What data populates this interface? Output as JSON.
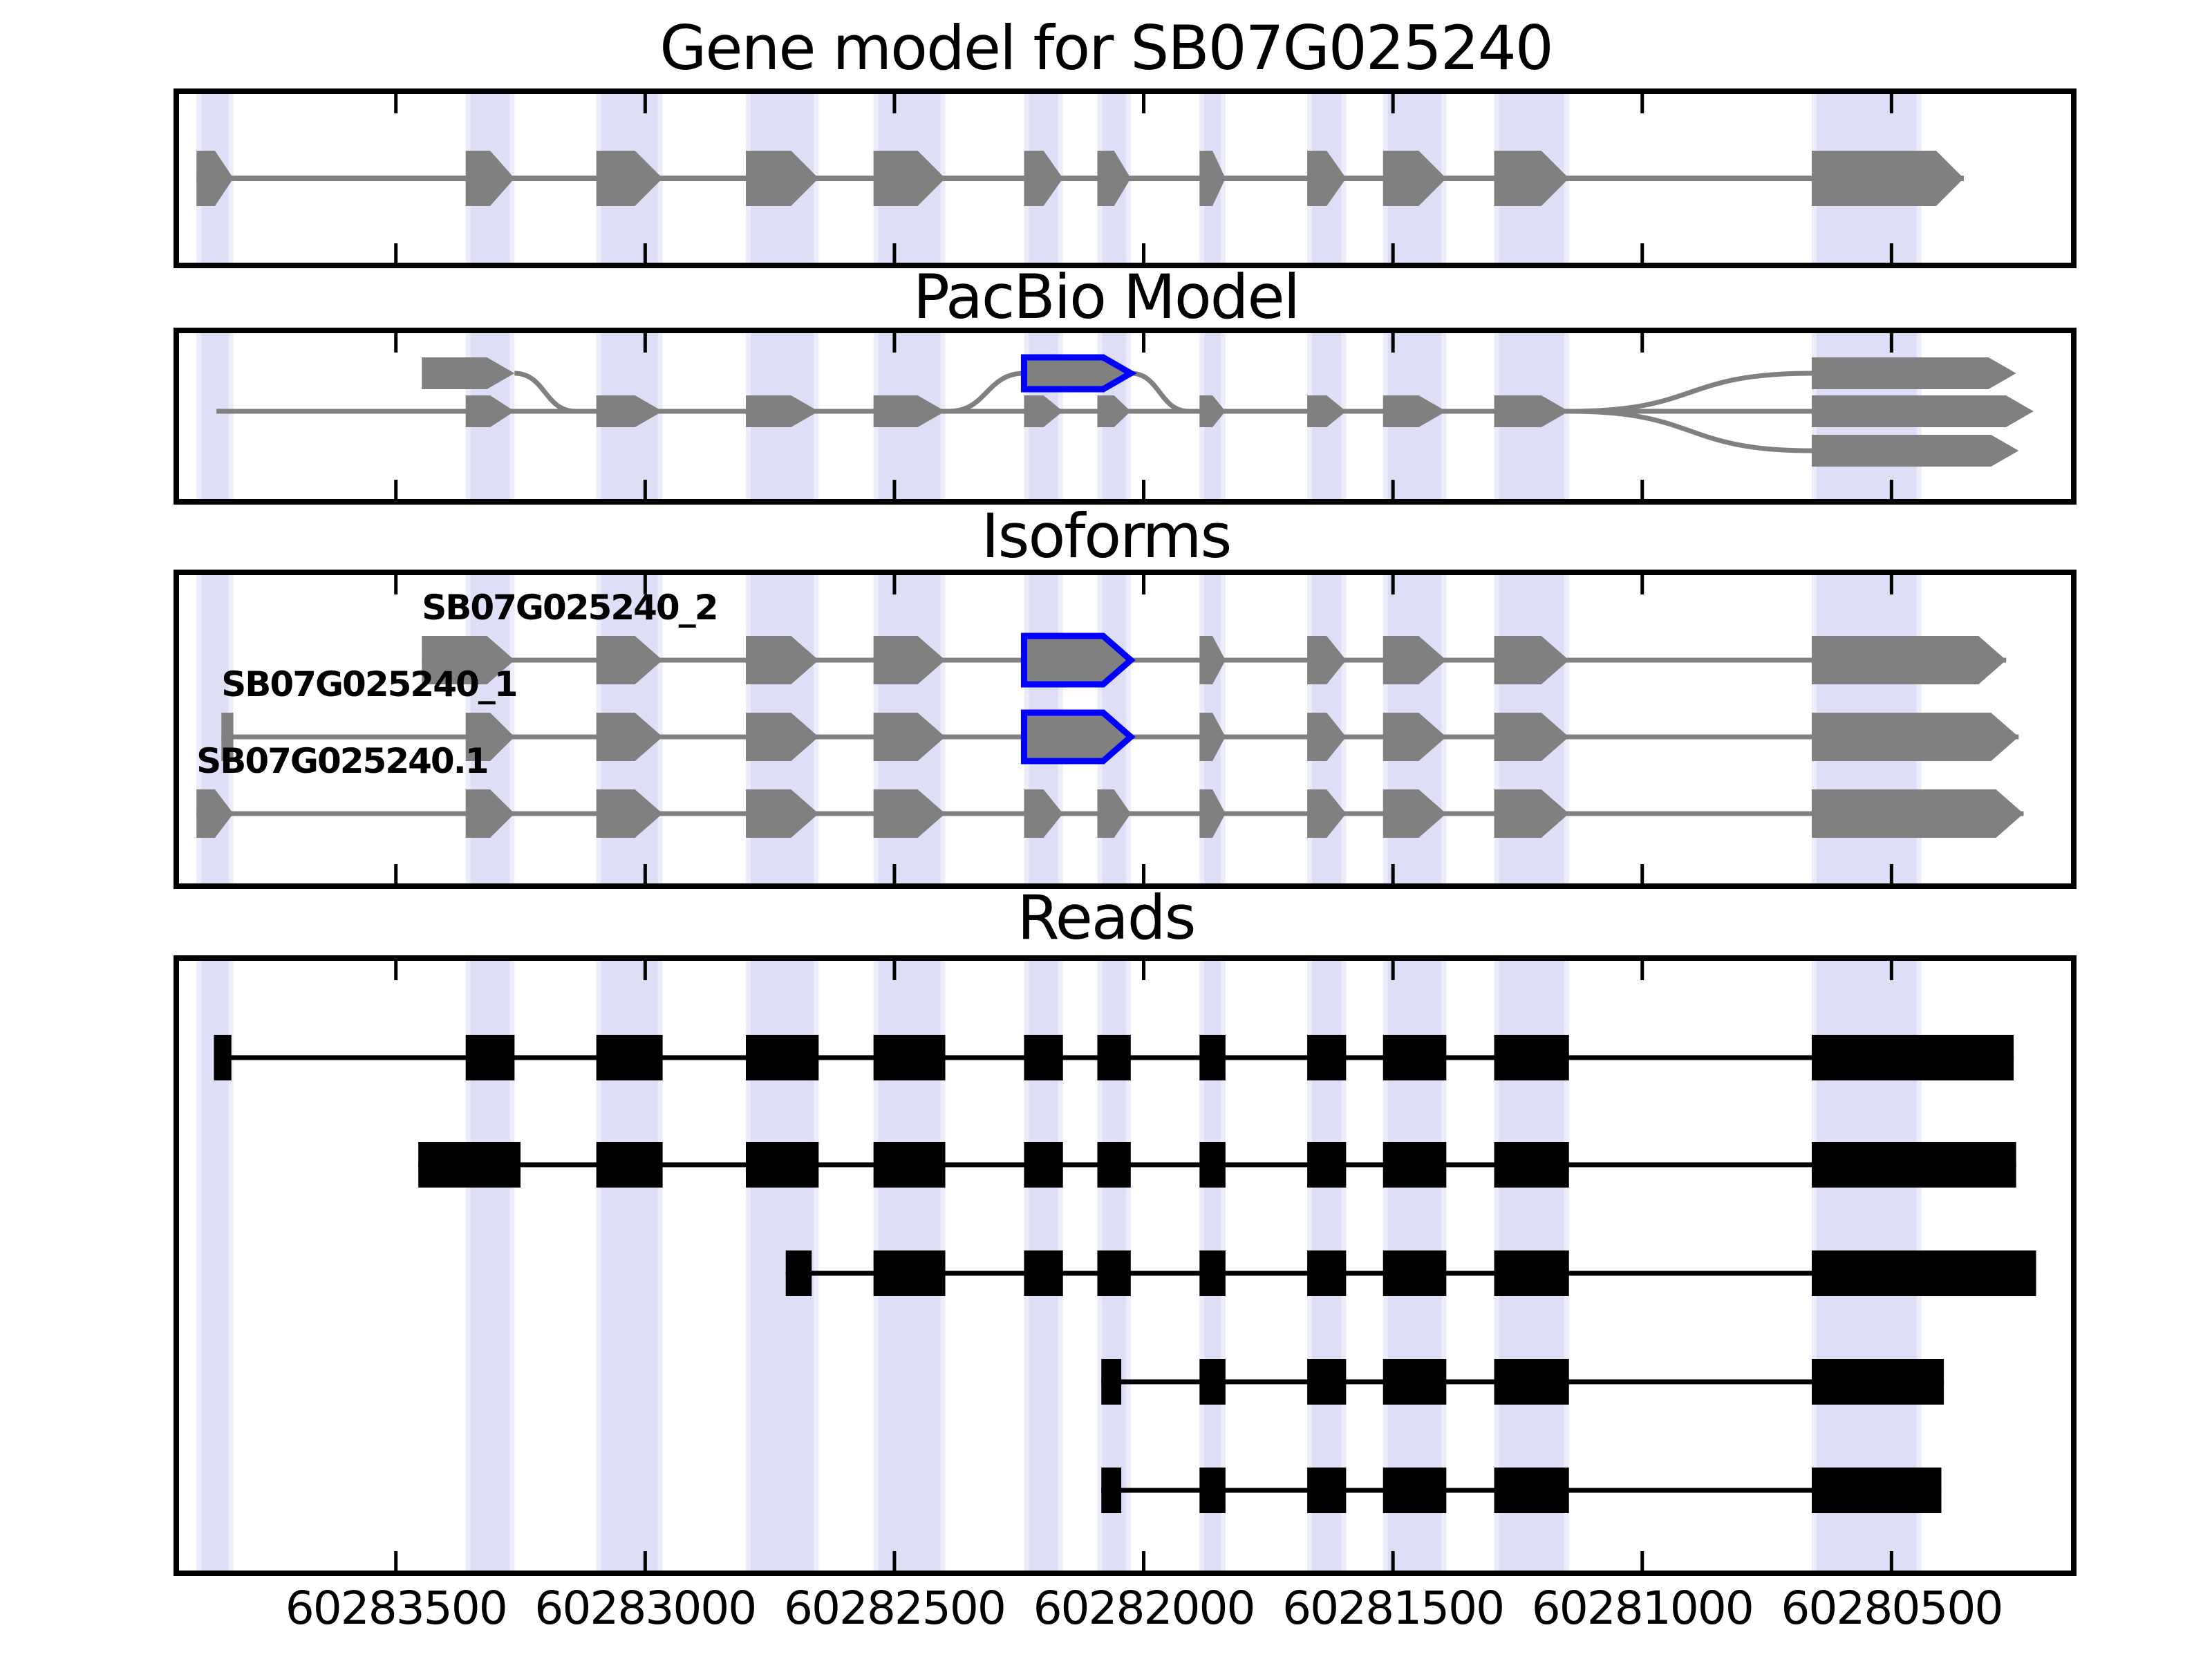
{
  "titles": {
    "gene_model": "Gene model for SB07G025240",
    "pacbio": "PacBio Model",
    "isoforms": "Isoforms",
    "reads": "Reads"
  },
  "colors": {
    "exon_gray": "#808080",
    "read_black": "#000000",
    "highlight_core": "#dedef6",
    "highlight_edge": "#ececfa",
    "blue_outline": "#0000ff",
    "panel_border": "#000000",
    "background": "#ffffff"
  },
  "chart_data": {
    "type": "genome-tracks",
    "gene_id": "SB07G025240",
    "x_axis": {
      "start": 60283935,
      "end": 60280140,
      "reversed": true,
      "tick_values": [
        60283500,
        60283000,
        60282500,
        60282000,
        60281500,
        60281000,
        60280500
      ],
      "tick_labels": [
        "60283500",
        "60283000",
        "60282500",
        "60282000",
        "60281500",
        "60281000",
        "60280500"
      ]
    },
    "highlight_regions": [
      [
        60283900,
        60283826
      ],
      [
        60283360,
        60283262
      ],
      [
        60283098,
        60282965
      ],
      [
        60282798,
        60282652
      ],
      [
        60282542,
        60282398
      ],
      [
        60282240,
        60282162
      ],
      [
        60282093,
        60282026
      ],
      [
        60281888,
        60281836
      ],
      [
        60281672,
        60281594
      ],
      [
        60281520,
        60281393
      ],
      [
        60281297,
        60281147
      ],
      [
        60280660,
        60280440
      ]
    ],
    "gene_model": {
      "line": [
        60283900,
        60280355
      ],
      "features": [
        {
          "type": "exon",
          "span": [
            60283900,
            60283826
          ]
        },
        {
          "type": "exon",
          "span": [
            60283360,
            60283262
          ]
        },
        {
          "type": "exon",
          "span": [
            60283098,
            60282965
          ]
        },
        {
          "type": "exon",
          "span": [
            60282798,
            60282652
          ]
        },
        {
          "type": "exon",
          "span": [
            60282542,
            60282398
          ]
        },
        {
          "type": "exon",
          "span": [
            60282240,
            60282162
          ]
        },
        {
          "type": "exon",
          "span": [
            60282093,
            60282026
          ]
        },
        {
          "type": "exon",
          "span": [
            60281888,
            60281836
          ]
        },
        {
          "type": "exon",
          "span": [
            60281672,
            60281594
          ]
        },
        {
          "type": "exon",
          "span": [
            60281520,
            60281393
          ]
        },
        {
          "type": "exon",
          "span": [
            60281297,
            60281147
          ]
        },
        {
          "type": "exon",
          "span": [
            60280660,
            60280355
          ]
        }
      ]
    },
    "pacbio": {
      "start_exon": [
        60283860,
        60283826
      ],
      "main_line": [
        60283860,
        60280660
      ],
      "main_exons": [
        [
          60283360,
          60283262
        ],
        [
          60283098,
          60282965
        ],
        [
          60282798,
          60282652
        ],
        [
          60282542,
          60282398
        ],
        [
          60282240,
          60282162
        ],
        [
          60282093,
          60282026
        ],
        [
          60281888,
          60281836
        ],
        [
          60281672,
          60281594
        ],
        [
          60281520,
          60281393
        ],
        [
          60281297,
          60281147
        ]
      ],
      "alt_start": {
        "exon": [
          60283448,
          60283262
        ],
        "join_at": 60283140
      },
      "alt_blue_exon": {
        "exon": [
          60282240,
          60282026
        ],
        "curve_from": 60282390,
        "curve_to": 60281910
      },
      "branch_point": 60281147,
      "end_exons": {
        "top": [
          60280660,
          60280250
        ],
        "middle": [
          60280660,
          60280215
        ],
        "bottom": [
          60280660,
          60280245
        ]
      }
    },
    "isoforms": [
      {
        "label": "SB07G025240_2",
        "label_at": 60283448,
        "line": [
          60283448,
          60280270
        ],
        "features": [
          {
            "type": "exon",
            "span": [
              60283448,
              60283262
            ]
          },
          {
            "type": "exon",
            "span": [
              60283098,
              60282965
            ]
          },
          {
            "type": "exon",
            "span": [
              60282798,
              60282652
            ]
          },
          {
            "type": "exon",
            "span": [
              60282542,
              60282398
            ]
          },
          {
            "type": "blue",
            "span": [
              60282240,
              60282026
            ]
          },
          {
            "type": "exon",
            "span": [
              60281888,
              60281836
            ]
          },
          {
            "type": "exon",
            "span": [
              60281672,
              60281594
            ]
          },
          {
            "type": "exon",
            "span": [
              60281520,
              60281393
            ]
          },
          {
            "type": "exon",
            "span": [
              60281297,
              60281147
            ]
          },
          {
            "type": "exon",
            "span": [
              60280660,
              60280270
            ]
          }
        ]
      },
      {
        "label": "SB07G025240_1",
        "label_at": 60283850,
        "line": [
          60283850,
          60280245
        ],
        "features": [
          {
            "type": "bar",
            "span": [
              60283850,
              60283826
            ]
          },
          {
            "type": "exon",
            "span": [
              60283360,
              60283262
            ]
          },
          {
            "type": "exon",
            "span": [
              60283098,
              60282965
            ]
          },
          {
            "type": "exon",
            "span": [
              60282798,
              60282652
            ]
          },
          {
            "type": "exon",
            "span": [
              60282542,
              60282398
            ]
          },
          {
            "type": "blue",
            "span": [
              60282240,
              60282026
            ]
          },
          {
            "type": "exon",
            "span": [
              60281888,
              60281836
            ]
          },
          {
            "type": "exon",
            "span": [
              60281672,
              60281594
            ]
          },
          {
            "type": "exon",
            "span": [
              60281520,
              60281393
            ]
          },
          {
            "type": "exon",
            "span": [
              60281297,
              60281147
            ]
          },
          {
            "type": "exon",
            "span": [
              60280660,
              60280245
            ]
          }
        ]
      },
      {
        "label": "SB07G025240.1",
        "label_at": 60283900,
        "line": [
          60283900,
          60280235
        ],
        "features": [
          {
            "type": "exon",
            "span": [
              60283900,
              60283826
            ]
          },
          {
            "type": "exon",
            "span": [
              60283360,
              60283262
            ]
          },
          {
            "type": "exon",
            "span": [
              60283098,
              60282965
            ]
          },
          {
            "type": "exon",
            "span": [
              60282798,
              60282652
            ]
          },
          {
            "type": "exon",
            "span": [
              60282542,
              60282398
            ]
          },
          {
            "type": "exon",
            "span": [
              60282240,
              60282162
            ]
          },
          {
            "type": "exon",
            "span": [
              60282093,
              60282026
            ]
          },
          {
            "type": "exon",
            "span": [
              60281888,
              60281836
            ]
          },
          {
            "type": "exon",
            "span": [
              60281672,
              60281594
            ]
          },
          {
            "type": "exon",
            "span": [
              60281520,
              60281393
            ]
          },
          {
            "type": "exon",
            "span": [
              60281297,
              60281147
            ]
          },
          {
            "type": "exon",
            "span": [
              60280660,
              60280235
            ]
          }
        ]
      }
    ],
    "reads": [
      {
        "features": [
          {
            "type": "bar",
            "span": [
              60283865,
              60283830
            ]
          },
          {
            "type": "box",
            "span": [
              60283360,
              60283262
            ]
          },
          {
            "type": "box",
            "span": [
              60283098,
              60282965
            ]
          },
          {
            "type": "box",
            "span": [
              60282798,
              60282652
            ]
          },
          {
            "type": "box",
            "span": [
              60282542,
              60282398
            ]
          },
          {
            "type": "box",
            "span": [
              60282240,
              60282162
            ]
          },
          {
            "type": "box",
            "span": [
              60282093,
              60282026
            ]
          },
          {
            "type": "box",
            "span": [
              60281888,
              60281836
            ]
          },
          {
            "type": "box",
            "span": [
              60281672,
              60281594
            ]
          },
          {
            "type": "box",
            "span": [
              60281520,
              60281393
            ]
          },
          {
            "type": "box",
            "span": [
              60281297,
              60281147
            ]
          },
          {
            "type": "box",
            "span": [
              60280660,
              60280255
            ]
          }
        ]
      },
      {
        "features": [
          {
            "type": "box",
            "span": [
              60283455,
              60283250
            ]
          },
          {
            "type": "box",
            "span": [
              60283098,
              60282965
            ]
          },
          {
            "type": "box",
            "span": [
              60282798,
              60282652
            ]
          },
          {
            "type": "box",
            "span": [
              60282542,
              60282398
            ]
          },
          {
            "type": "box",
            "span": [
              60282240,
              60282162
            ]
          },
          {
            "type": "box",
            "span": [
              60282093,
              60282026
            ]
          },
          {
            "type": "box",
            "span": [
              60281888,
              60281836
            ]
          },
          {
            "type": "box",
            "span": [
              60281672,
              60281594
            ]
          },
          {
            "type": "box",
            "span": [
              60281520,
              60281393
            ]
          },
          {
            "type": "box",
            "span": [
              60281297,
              60281147
            ]
          },
          {
            "type": "box",
            "span": [
              60280660,
              60280250
            ]
          }
        ]
      },
      {
        "features": [
          {
            "type": "bar",
            "span": [
              60282718,
              60282666
            ]
          },
          {
            "type": "box",
            "span": [
              60282542,
              60282398
            ]
          },
          {
            "type": "box",
            "span": [
              60282240,
              60282162
            ]
          },
          {
            "type": "box",
            "span": [
              60282093,
              60282026
            ]
          },
          {
            "type": "box",
            "span": [
              60281888,
              60281836
            ]
          },
          {
            "type": "box",
            "span": [
              60281672,
              60281594
            ]
          },
          {
            "type": "box",
            "span": [
              60281520,
              60281393
            ]
          },
          {
            "type": "box",
            "span": [
              60281297,
              60281147
            ]
          },
          {
            "type": "box",
            "span": [
              60280660,
              60280210
            ]
          }
        ]
      },
      {
        "features": [
          {
            "type": "bar",
            "span": [
              60282085,
              60282045
            ]
          },
          {
            "type": "box",
            "span": [
              60281888,
              60281836
            ]
          },
          {
            "type": "box",
            "span": [
              60281672,
              60281594
            ]
          },
          {
            "type": "box",
            "span": [
              60281520,
              60281393
            ]
          },
          {
            "type": "box",
            "span": [
              60281297,
              60281147
            ]
          },
          {
            "type": "box",
            "span": [
              60280660,
              60280395
            ]
          }
        ]
      },
      {
        "features": [
          {
            "type": "bar",
            "span": [
              60282085,
              60282045
            ]
          },
          {
            "type": "box",
            "span": [
              60281888,
              60281836
            ]
          },
          {
            "type": "box",
            "span": [
              60281672,
              60281594
            ]
          },
          {
            "type": "box",
            "span": [
              60281520,
              60281393
            ]
          },
          {
            "type": "box",
            "span": [
              60281297,
              60281147
            ]
          },
          {
            "type": "box",
            "span": [
              60280660,
              60280400
            ]
          }
        ]
      }
    ]
  }
}
